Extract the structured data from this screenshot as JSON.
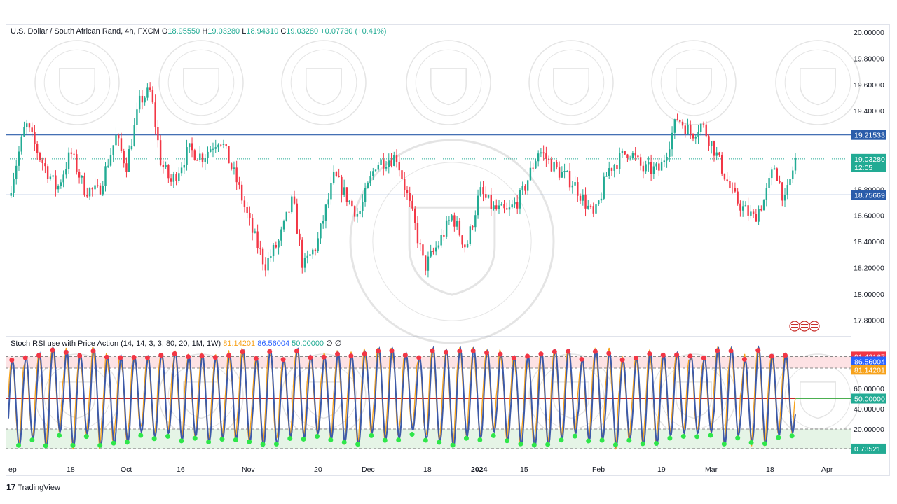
{
  "header": {
    "symbol": "U.S. Dollar / South African Rand, 4h, FXCM",
    "o_label": "O",
    "o": "18.95550",
    "h_label": "H",
    "h": "19.03280",
    "l_label": "L",
    "l": "18.94310",
    "c_label": "C",
    "c": "19.03280",
    "change": "+0.07730 (+0.41%)"
  },
  "indicator": {
    "title": "Stoch RSI use with Price Action (14, 14, 3, 3, 80, 20, 1M, 1W)",
    "k_value": "81.14201",
    "d_value": "86.56004",
    "mid_value": "50.00000",
    "extra": "∅ ∅"
  },
  "branding": {
    "text": "TradingView",
    "logo": "17"
  },
  "colors": {
    "up": "#22ab94",
    "down": "#f23645",
    "level_line": "#2a5caa",
    "k_line": "#f7a21b",
    "d_line": "#3d5aa8",
    "mid_line": "#c62828",
    "overbought_fill": "#fde2e4",
    "oversold_fill": "#e5f4e6"
  },
  "chart_data": [
    {
      "type": "candlestick",
      "timeframe": "4h",
      "ylim": [
        17.7,
        20.0
      ],
      "yticks": [
        "20.00000",
        "19.80000",
        "19.60000",
        "19.40000",
        "19.20000",
        "18.80000",
        "18.60000",
        "18.40000",
        "18.20000",
        "18.00000",
        "17.80000"
      ],
      "ytick_values": [
        20.0,
        19.8,
        19.6,
        19.4,
        19.2,
        18.8,
        18.6,
        18.4,
        18.2,
        18.0,
        17.8
      ],
      "x_ticks": [
        "ep",
        "18",
        "Oct",
        "16",
        "Nov",
        "20",
        "Dec",
        "18",
        "2024",
        "15",
        "Feb",
        "19",
        "Mar",
        "18",
        "Apr"
      ],
      "x_tick_bold": [
        "2024"
      ],
      "horizontal_levels": [
        {
          "value": 19.21533,
          "label": "19.21533"
        },
        {
          "value": 18.75669,
          "label": "18.75669"
        }
      ],
      "last_price": {
        "value": 19.0328,
        "label": "19.03280",
        "countdown": "12:05"
      },
      "price_path": [
        {
          "t": 0.0,
          "p": 18.75
        },
        {
          "t": 0.025,
          "p": 19.3
        },
        {
          "t": 0.045,
          "p": 19.05
        },
        {
          "t": 0.07,
          "p": 18.8
        },
        {
          "t": 0.09,
          "p": 19.08
        },
        {
          "t": 0.11,
          "p": 18.8
        },
        {
          "t": 0.13,
          "p": 18.78
        },
        {
          "t": 0.155,
          "p": 19.2
        },
        {
          "t": 0.17,
          "p": 18.98
        },
        {
          "t": 0.19,
          "p": 19.48
        },
        {
          "t": 0.205,
          "p": 19.55
        },
        {
          "t": 0.22,
          "p": 19.0
        },
        {
          "t": 0.235,
          "p": 18.85
        },
        {
          "t": 0.26,
          "p": 19.1
        },
        {
          "t": 0.28,
          "p": 19.05
        },
        {
          "t": 0.305,
          "p": 19.2
        },
        {
          "t": 0.33,
          "p": 18.85
        },
        {
          "t": 0.35,
          "p": 18.5
        },
        {
          "t": 0.37,
          "p": 18.22
        },
        {
          "t": 0.39,
          "p": 18.4
        },
        {
          "t": 0.41,
          "p": 18.72
        },
        {
          "t": 0.425,
          "p": 18.2
        },
        {
          "t": 0.445,
          "p": 18.38
        },
        {
          "t": 0.47,
          "p": 18.9
        },
        {
          "t": 0.49,
          "p": 18.72
        },
        {
          "t": 0.505,
          "p": 18.6
        },
        {
          "t": 0.53,
          "p": 19.0
        },
        {
          "t": 0.56,
          "p": 19.05
        },
        {
          "t": 0.585,
          "p": 18.55
        },
        {
          "t": 0.6,
          "p": 18.2
        },
        {
          "t": 0.62,
          "p": 18.38
        },
        {
          "t": 0.64,
          "p": 18.6
        },
        {
          "t": 0.66,
          "p": 18.35
        },
        {
          "t": 0.68,
          "p": 18.78
        },
        {
          "t": 0.7,
          "p": 18.65
        },
        {
          "t": 0.72,
          "p": 18.62
        },
        {
          "t": 0.74,
          "p": 18.75
        },
        {
          "t": 0.765,
          "p": 19.1
        },
        {
          "t": 0.79,
          "p": 18.95
        },
        {
          "t": 0.815,
          "p": 18.85
        },
        {
          "t": 0.845,
          "p": 18.58
        },
        {
          "t": 0.865,
          "p": 18.95
        },
        {
          "t": 0.895,
          "p": 19.1
        },
        {
          "t": 0.915,
          "p": 18.95
        },
        {
          "t": 0.94,
          "p": 18.95
        },
        {
          "t": 0.965,
          "p": 19.35
        },
        {
          "t": 0.985,
          "p": 19.22
        },
        {
          "t": 1.0,
          "p": 19.3
        },
        {
          "t": 1.02,
          "p": 19.08
        },
        {
          "t": 1.045,
          "p": 18.75
        },
        {
          "t": 1.06,
          "p": 18.65
        },
        {
          "t": 1.075,
          "p": 18.58
        },
        {
          "t": 1.09,
          "p": 18.72
        },
        {
          "t": 1.105,
          "p": 18.98
        },
        {
          "t": 1.12,
          "p": 18.7
        },
        {
          "t": 1.135,
          "p": 19.03
        }
      ]
    },
    {
      "type": "line",
      "name": "Stoch RSI use with Price Action",
      "ylim": [
        0,
        100
      ],
      "yticks": [
        "60.00000",
        "40.00000",
        "20.00000"
      ],
      "ytick_values": [
        60,
        40,
        20
      ],
      "levels": [
        {
          "value": 91.42167,
          "label": "91.42167"
        },
        {
          "value": 50.0,
          "label": "50.00000"
        },
        {
          "value": 0.73521,
          "label": "0.73521"
        }
      ],
      "overbought": 80,
      "oversold": 20,
      "k_last": {
        "value": 81.14201,
        "label": "81.14201"
      },
      "d_last": {
        "value": 86.56004,
        "label": "86.56004"
      },
      "cycles": 58
    }
  ]
}
